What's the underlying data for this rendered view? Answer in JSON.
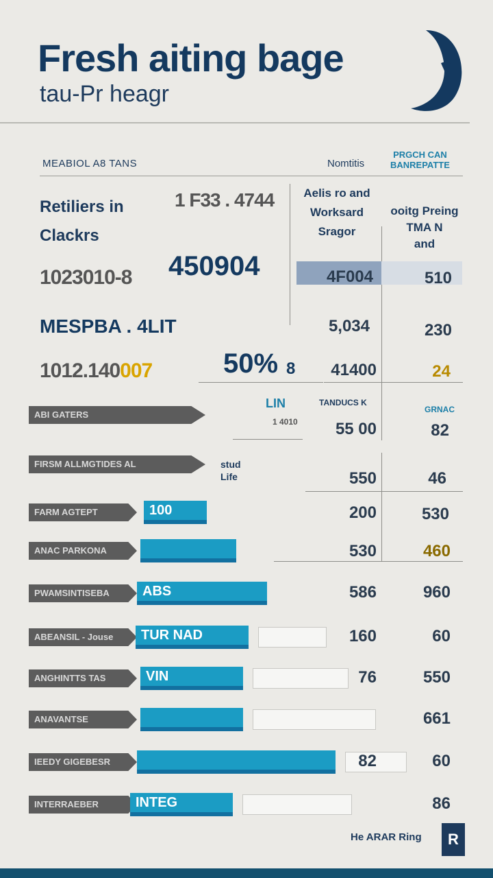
{
  "header": {
    "title": "Fresh aiting bage",
    "subtitle": "tau-Pr heagr",
    "left_caption": "MEABIOL A8 TANS",
    "mid_caption": "Nomtitis",
    "right_caption_line1": "PRGCH CAN",
    "right_caption_line2": "BANREPATTE"
  },
  "summary": {
    "label1": "Retiliers in",
    "value1": "1 F33 . 4744",
    "label2": "Clackrs",
    "stat1": "1023010-8",
    "stat1_big": "450904",
    "label3": "MESPBA . 4LIT",
    "stat2": "1012.140",
    "stat2_gold": "007",
    "stat2_big": "50%",
    "stat2_small": "8"
  },
  "table": {
    "col1_header_line1": "Aelis ro and",
    "col1_header_line2": "Worksard",
    "col1_header_line3": "Sragor",
    "col2_header_line1": "ooitg Preing",
    "col2_header_line2": "TMA N",
    "col2_header_line3": "and",
    "mid_chip": "LIN",
    "mid_chip2": "1 4010",
    "mini_label": "TANDUCS K",
    "mini_label2": "GRNAC",
    "side_label_line1": "stud",
    "side_label_line2": "Life",
    "rows": [
      {
        "c1": "4F004",
        "c2": "510"
      },
      {
        "c1": "5,034",
        "c2": "230"
      },
      {
        "c1": "41400",
        "c2": "24"
      },
      {
        "c1": "55 00",
        "c2": "82"
      },
      {
        "c1": "550",
        "c2": "46"
      },
      {
        "c1": "200",
        "c2": "530"
      },
      {
        "c1": "530",
        "c2": "460"
      }
    ]
  },
  "bars": {
    "items": [
      {
        "label": "ABI   GATERS",
        "bar_text": "",
        "value_right": "",
        "far_right": ""
      },
      {
        "label": "FIRSM ALLMGTIDES AL",
        "bar_text": "",
        "value_right": "",
        "far_right": ""
      },
      {
        "label": "FARM AGTEPT",
        "bar_text": "100",
        "value_right": "",
        "far_right": ""
      },
      {
        "label": "ANAC PARKONA",
        "bar_text": "",
        "value_right": "",
        "far_right": ""
      },
      {
        "label": "PWAMSINTISEBA",
        "bar_text": "ABS",
        "value_right": "586",
        "far_right": "960"
      },
      {
        "label": "ABEANSIL - Jouse",
        "bar_text": "TUR NAD",
        "value_right": "160",
        "far_right": "60"
      },
      {
        "label": "ANGHINTTS TAS",
        "bar_text": "VIN",
        "value_right": "76",
        "far_right": "550"
      },
      {
        "label": "ANAVANTSE",
        "bar_text": "",
        "value_right": "",
        "far_right": "661"
      },
      {
        "label": "IEEDY GIGEBESR",
        "bar_text": "",
        "value_right": "82",
        "far_right": "60"
      },
      {
        "label": "INTERRAEBER",
        "bar_text": "INTEG",
        "value_right": "",
        "far_right": "86"
      }
    ]
  },
  "footer": {
    "credit": "He ARAR Ring",
    "badge": "R"
  },
  "colors": {
    "navy": "#14395f",
    "accent": "#1b9cc4",
    "gold": "#d9a400",
    "background": "#ebeae6"
  },
  "chart_data": {
    "type": "table",
    "title": "Fresh aiting bage",
    "subtitle": "tau-Pr heagr",
    "columns": [
      "Aelis ro and Worksard Sragor",
      "ooitg Preing TMA N and"
    ],
    "rows": [
      [
        "4F004",
        "510"
      ],
      [
        "5,034",
        "230"
      ],
      [
        "41400",
        "24"
      ],
      [
        "55 00",
        "82"
      ],
      [
        "550",
        "46"
      ],
      [
        "200",
        "530"
      ],
      [
        "530",
        "460"
      ],
      [
        "586",
        "960"
      ],
      [
        "160",
        "60"
      ],
      [
        "76",
        "550"
      ],
      [
        "",
        "661"
      ],
      [
        "82",
        "60"
      ],
      [
        "",
        "86"
      ]
    ]
  }
}
